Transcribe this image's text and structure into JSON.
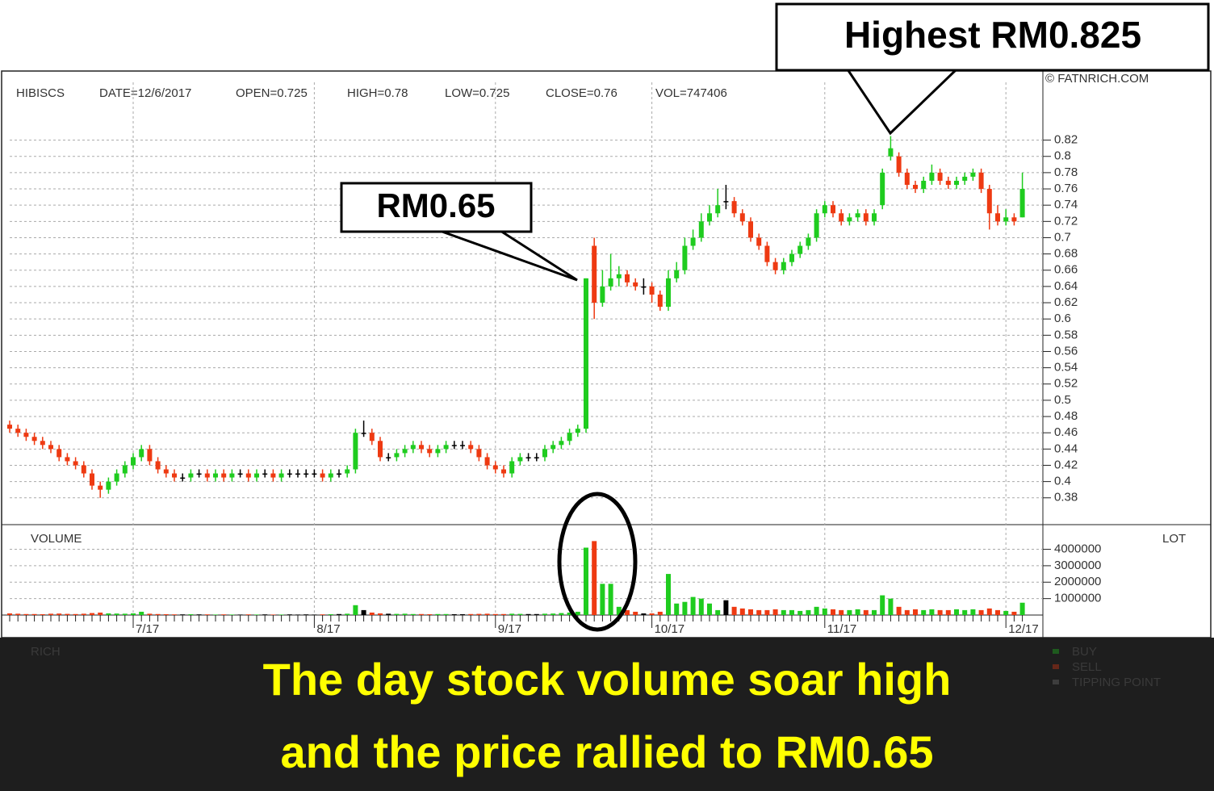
{
  "chart_data": {
    "type": "candlestick",
    "symbol": "HIBISCS",
    "info": [
      "DATE=12/6/2017",
      "OPEN=0.725",
      "HIGH=0.78",
      "LOW=0.725",
      "CLOSE=0.76",
      "VOL=747406"
    ],
    "watermark": "© FATNRICH.COM",
    "up_color": "#1fcc1f",
    "down_color": "#ee3a12",
    "flat_color": "#000000",
    "ylim": [
      0.347,
      0.905
    ],
    "yticks": [
      0.38,
      0.4,
      0.42,
      0.44,
      0.46,
      0.48,
      0.5,
      0.52,
      0.54,
      0.56,
      0.58,
      0.6,
      0.62,
      0.64,
      0.66,
      0.68,
      0.7,
      0.72,
      0.74,
      0.76,
      0.78,
      0.8,
      0.82
    ],
    "grid": true,
    "categories": [
      null,
      null,
      null,
      null,
      null,
      null,
      null,
      null,
      null,
      null,
      null,
      null,
      null,
      null,
      null,
      "7/17",
      null,
      null,
      null,
      null,
      null,
      null,
      null,
      null,
      null,
      null,
      null,
      null,
      null,
      null,
      null,
      null,
      null,
      null,
      null,
      null,
      null,
      "8/17",
      null,
      null,
      null,
      null,
      null,
      null,
      null,
      null,
      null,
      null,
      null,
      null,
      null,
      null,
      null,
      null,
      null,
      null,
      null,
      null,
      null,
      "9/17",
      null,
      null,
      null,
      null,
      null,
      null,
      null,
      null,
      null,
      null,
      null,
      null,
      null,
      null,
      null,
      null,
      null,
      null,
      "10/17",
      null,
      null,
      null,
      null,
      null,
      null,
      null,
      null,
      null,
      null,
      null,
      null,
      null,
      null,
      null,
      null,
      null,
      null,
      null,
      null,
      "11/17",
      null,
      null,
      null,
      null,
      null,
      null,
      null,
      null,
      null,
      null,
      null,
      null,
      null,
      null,
      null,
      null,
      null,
      null,
      null,
      null,
      null,
      "12/17",
      null,
      null
    ],
    "ohlc": [
      [
        0.47,
        0.475,
        0.46,
        0.465
      ],
      [
        0.465,
        0.47,
        0.455,
        0.46
      ],
      [
        0.46,
        0.465,
        0.45,
        0.455
      ],
      [
        0.455,
        0.46,
        0.445,
        0.45
      ],
      [
        0.45,
        0.455,
        0.44,
        0.445
      ],
      [
        0.445,
        0.45,
        0.435,
        0.44
      ],
      [
        0.44,
        0.445,
        0.425,
        0.43
      ],
      [
        0.43,
        0.435,
        0.42,
        0.425
      ],
      [
        0.425,
        0.43,
        0.415,
        0.42
      ],
      [
        0.42,
        0.425,
        0.405,
        0.41
      ],
      [
        0.41,
        0.415,
        0.39,
        0.395
      ],
      [
        0.395,
        0.4,
        0.38,
        0.39
      ],
      [
        0.39,
        0.405,
        0.385,
        0.4
      ],
      [
        0.4,
        0.415,
        0.395,
        0.41
      ],
      [
        0.41,
        0.425,
        0.405,
        0.42
      ],
      [
        0.42,
        0.435,
        0.415,
        0.43
      ],
      [
        0.43,
        0.445,
        0.425,
        0.44
      ],
      [
        0.44,
        0.445,
        0.42,
        0.425
      ],
      [
        0.425,
        0.43,
        0.41,
        0.415
      ],
      [
        0.415,
        0.42,
        0.405,
        0.41
      ],
      [
        0.41,
        0.415,
        0.4,
        0.405
      ],
      [
        0.405,
        0.41,
        0.4,
        0.405
      ],
      [
        0.405,
        0.415,
        0.4,
        0.41
      ],
      [
        0.41,
        0.415,
        0.405,
        0.41
      ],
      [
        0.41,
        0.415,
        0.4,
        0.405
      ],
      [
        0.405,
        0.415,
        0.4,
        0.41
      ],
      [
        0.41,
        0.415,
        0.4,
        0.405
      ],
      [
        0.405,
        0.415,
        0.4,
        0.41
      ],
      [
        0.41,
        0.415,
        0.405,
        0.41
      ],
      [
        0.41,
        0.415,
        0.4,
        0.405
      ],
      [
        0.405,
        0.415,
        0.4,
        0.41
      ],
      [
        0.41,
        0.415,
        0.405,
        0.41
      ],
      [
        0.41,
        0.415,
        0.4,
        0.405
      ],
      [
        0.405,
        0.415,
        0.4,
        0.41
      ],
      [
        0.41,
        0.415,
        0.405,
        0.41
      ],
      [
        0.41,
        0.415,
        0.405,
        0.41
      ],
      [
        0.41,
        0.415,
        0.405,
        0.41
      ],
      [
        0.41,
        0.415,
        0.405,
        0.41
      ],
      [
        0.41,
        0.415,
        0.4,
        0.405
      ],
      [
        0.405,
        0.415,
        0.4,
        0.41
      ],
      [
        0.41,
        0.415,
        0.405,
        0.41
      ],
      [
        0.41,
        0.42,
        0.405,
        0.415
      ],
      [
        0.415,
        0.465,
        0.41,
        0.46
      ],
      [
        0.46,
        0.475,
        0.455,
        0.46
      ],
      [
        0.46,
        0.465,
        0.445,
        0.45
      ],
      [
        0.45,
        0.455,
        0.425,
        0.43
      ],
      [
        0.43,
        0.435,
        0.425,
        0.43
      ],
      [
        0.43,
        0.44,
        0.425,
        0.435
      ],
      [
        0.435,
        0.445,
        0.43,
        0.44
      ],
      [
        0.44,
        0.45,
        0.435,
        0.445
      ],
      [
        0.445,
        0.45,
        0.435,
        0.44
      ],
      [
        0.44,
        0.445,
        0.43,
        0.435
      ],
      [
        0.435,
        0.445,
        0.43,
        0.44
      ],
      [
        0.44,
        0.45,
        0.435,
        0.445
      ],
      [
        0.445,
        0.45,
        0.44,
        0.445
      ],
      [
        0.445,
        0.45,
        0.44,
        0.445
      ],
      [
        0.445,
        0.45,
        0.435,
        0.44
      ],
      [
        0.44,
        0.445,
        0.425,
        0.43
      ],
      [
        0.43,
        0.435,
        0.415,
        0.42
      ],
      [
        0.42,
        0.425,
        0.41,
        0.415
      ],
      [
        0.415,
        0.42,
        0.405,
        0.41
      ],
      [
        0.41,
        0.43,
        0.405,
        0.425
      ],
      [
        0.425,
        0.435,
        0.42,
        0.43
      ],
      [
        0.43,
        0.435,
        0.425,
        0.43
      ],
      [
        0.43,
        0.435,
        0.425,
        0.43
      ],
      [
        0.43,
        0.445,
        0.425,
        0.44
      ],
      [
        0.44,
        0.45,
        0.435,
        0.445
      ],
      [
        0.445,
        0.455,
        0.44,
        0.45
      ],
      [
        0.45,
        0.465,
        0.445,
        0.46
      ],
      [
        0.46,
        0.47,
        0.455,
        0.465
      ],
      [
        0.465,
        0.65,
        0.46,
        0.65
      ],
      [
        0.69,
        0.7,
        0.6,
        0.62
      ],
      [
        0.62,
        0.66,
        0.615,
        0.64
      ],
      [
        0.64,
        0.68,
        0.635,
        0.65
      ],
      [
        0.65,
        0.665,
        0.64,
        0.655
      ],
      [
        0.655,
        0.66,
        0.64,
        0.645
      ],
      [
        0.645,
        0.65,
        0.635,
        0.64
      ],
      [
        0.64,
        0.65,
        0.63,
        0.64
      ],
      [
        0.64,
        0.645,
        0.62,
        0.63
      ],
      [
        0.63,
        0.635,
        0.61,
        0.615
      ],
      [
        0.615,
        0.66,
        0.61,
        0.65
      ],
      [
        0.65,
        0.67,
        0.645,
        0.66
      ],
      [
        0.66,
        0.7,
        0.655,
        0.69
      ],
      [
        0.69,
        0.71,
        0.685,
        0.7
      ],
      [
        0.7,
        0.73,
        0.695,
        0.72
      ],
      [
        0.72,
        0.74,
        0.715,
        0.73
      ],
      [
        0.73,
        0.76,
        0.725,
        0.74
      ],
      [
        0.745,
        0.765,
        0.735,
        0.745
      ],
      [
        0.745,
        0.75,
        0.725,
        0.73
      ],
      [
        0.73,
        0.735,
        0.715,
        0.72
      ],
      [
        0.72,
        0.725,
        0.695,
        0.7
      ],
      [
        0.7,
        0.705,
        0.685,
        0.69
      ],
      [
        0.69,
        0.695,
        0.665,
        0.67
      ],
      [
        0.67,
        0.675,
        0.655,
        0.66
      ],
      [
        0.66,
        0.675,
        0.655,
        0.67
      ],
      [
        0.67,
        0.685,
        0.665,
        0.68
      ],
      [
        0.68,
        0.695,
        0.675,
        0.69
      ],
      [
        0.69,
        0.705,
        0.685,
        0.7
      ],
      [
        0.7,
        0.735,
        0.695,
        0.73
      ],
      [
        0.73,
        0.745,
        0.725,
        0.74
      ],
      [
        0.74,
        0.745,
        0.725,
        0.73
      ],
      [
        0.73,
        0.735,
        0.715,
        0.72
      ],
      [
        0.72,
        0.73,
        0.715,
        0.725
      ],
      [
        0.725,
        0.735,
        0.72,
        0.73
      ],
      [
        0.73,
        0.735,
        0.715,
        0.72
      ],
      [
        0.72,
        0.735,
        0.715,
        0.73
      ],
      [
        0.74,
        0.785,
        0.735,
        0.78
      ],
      [
        0.8,
        0.825,
        0.795,
        0.81
      ],
      [
        0.8,
        0.805,
        0.775,
        0.78
      ],
      [
        0.78,
        0.785,
        0.76,
        0.765
      ],
      [
        0.765,
        0.77,
        0.755,
        0.76
      ],
      [
        0.76,
        0.775,
        0.755,
        0.77
      ],
      [
        0.77,
        0.79,
        0.765,
        0.78
      ],
      [
        0.78,
        0.785,
        0.765,
        0.77
      ],
      [
        0.77,
        0.775,
        0.76,
        0.765
      ],
      [
        0.765,
        0.775,
        0.76,
        0.77
      ],
      [
        0.77,
        0.78,
        0.765,
        0.775
      ],
      [
        0.775,
        0.785,
        0.77,
        0.78
      ],
      [
        0.78,
        0.785,
        0.755,
        0.76
      ],
      [
        0.76,
        0.765,
        0.71,
        0.73
      ],
      [
        0.73,
        0.74,
        0.715,
        0.72
      ],
      [
        0.72,
        0.735,
        0.715,
        0.725
      ],
      [
        0.725,
        0.73,
        0.715,
        0.72
      ],
      [
        0.725,
        0.78,
        0.725,
        0.76
      ]
    ],
    "volume": {
      "label": "VOLUME",
      "unit": "LOT",
      "ylim": [
        0,
        5500000
      ],
      "yticks": [
        1000000,
        2000000,
        3000000,
        4000000
      ],
      "values": [
        100000,
        80000,
        60000,
        60000,
        50000,
        80000,
        90000,
        70000,
        60000,
        80000,
        120000,
        150000,
        100000,
        90000,
        80000,
        100000,
        200000,
        80000,
        60000,
        50000,
        40000,
        40000,
        50000,
        40000,
        40000,
        30000,
        40000,
        30000,
        30000,
        40000,
        30000,
        40000,
        30000,
        30000,
        40000,
        30000,
        40000,
        30000,
        40000,
        50000,
        60000,
        80000,
        600000,
        300000,
        150000,
        100000,
        80000,
        70000,
        80000,
        60000,
        60000,
        50000,
        60000,
        60000,
        50000,
        50000,
        60000,
        70000,
        80000,
        60000,
        60000,
        80000,
        70000,
        60000,
        60000,
        80000,
        90000,
        120000,
        150000,
        200000,
        4100000,
        4500000,
        1900000,
        1900000,
        500000,
        300000,
        200000,
        100000,
        100000,
        200000,
        2500000,
        700000,
        800000,
        1100000,
        1000000,
        700000,
        300000,
        900000,
        500000,
        400000,
        350000,
        300000,
        300000,
        350000,
        300000,
        300000,
        250000,
        300000,
        500000,
        400000,
        350000,
        300000,
        300000,
        350000,
        300000,
        300000,
        1200000,
        1000000,
        500000,
        300000,
        350000,
        300000,
        350000,
        300000,
        300000,
        350000,
        300000,
        350000,
        300000,
        400000,
        300000,
        250000,
        200000,
        750000
      ]
    },
    "indicator": {
      "label": "RICH",
      "legend": [
        "BUY",
        "SELL",
        "TIPPING POINT"
      ],
      "legend_colors": [
        "#1fcc1f",
        "#ee3a12",
        "#777777"
      ]
    },
    "annotations": [
      {
        "text": "Highest RM0.825",
        "index": 107,
        "price": 0.825
      },
      {
        "text": "RM0.65",
        "index": 70,
        "price": 0.65
      }
    ],
    "caption": [
      "The day stock volume soar high",
      "and the price rallied to RM0.65"
    ]
  }
}
